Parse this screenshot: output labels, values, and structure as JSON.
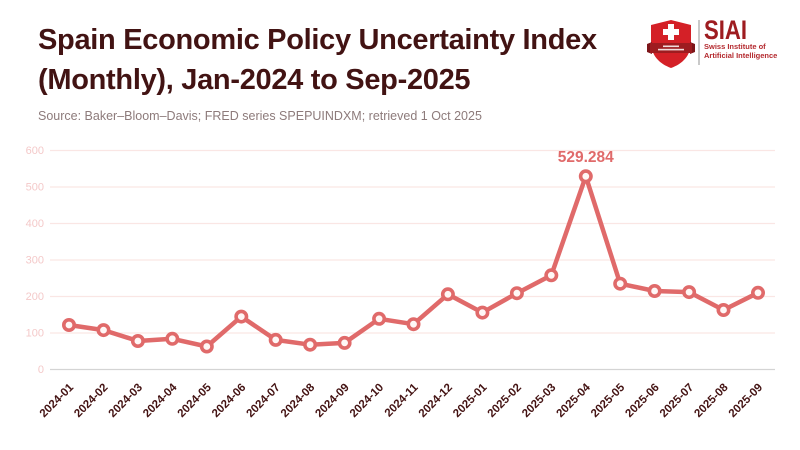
{
  "header": {
    "title_line1": "Spain Economic Policy Uncertainty Index",
    "title_line2": "(Monthly), Jan-2024 to Sep-2025",
    "source": "Source: Baker–Bloom–Davis; FRED series SPEPUINDXM; retrieved 1 Oct 2025"
  },
  "logo": {
    "wordmark": "SIAI",
    "subtitle_line1": "Swiss Institute of",
    "subtitle_line2": "Artificial Intelligence"
  },
  "colors": {
    "accent_line": "#e06a6a",
    "marker_fill": "#fff7f6",
    "title_text": "#421313",
    "x_tick_text": "#441313",
    "y_tick_text": "#f4c9c9",
    "gridline": "#fae6e4",
    "zero_line": "#d4d4d4",
    "source_text": "#8d7b7b",
    "logo_red": "#d42027",
    "logo_dark_red": "#9e1c20"
  },
  "chart_data": {
    "type": "line",
    "title": "Spain Economic Policy Uncertainty Index (Monthly), Jan-2024 to Sep-2025",
    "xlabel": "",
    "ylabel": "",
    "x": [
      "2024-01",
      "2024-02",
      "2024-03",
      "2024-04",
      "2024-05",
      "2024-06",
      "2024-07",
      "2024-08",
      "2024-09",
      "2024-10",
      "2024-11",
      "2024-12",
      "2025-01",
      "2025-02",
      "2025-03",
      "2025-04",
      "2025-05",
      "2025-06",
      "2025-07",
      "2025-08",
      "2025-09"
    ],
    "values": [
      122,
      108,
      78,
      84,
      63,
      145,
      81,
      68,
      73,
      139,
      124,
      206,
      156,
      209,
      258,
      529.284,
      235,
      215,
      212,
      163,
      210
    ],
    "ylim": [
      0,
      600
    ],
    "yticks": [
      0,
      100,
      200,
      300,
      400,
      500,
      600
    ],
    "grid": true,
    "legend": false,
    "marker_style": "open-circle",
    "annotation": {
      "text": "529.284",
      "x": "2025-04",
      "y": 529.284
    }
  }
}
